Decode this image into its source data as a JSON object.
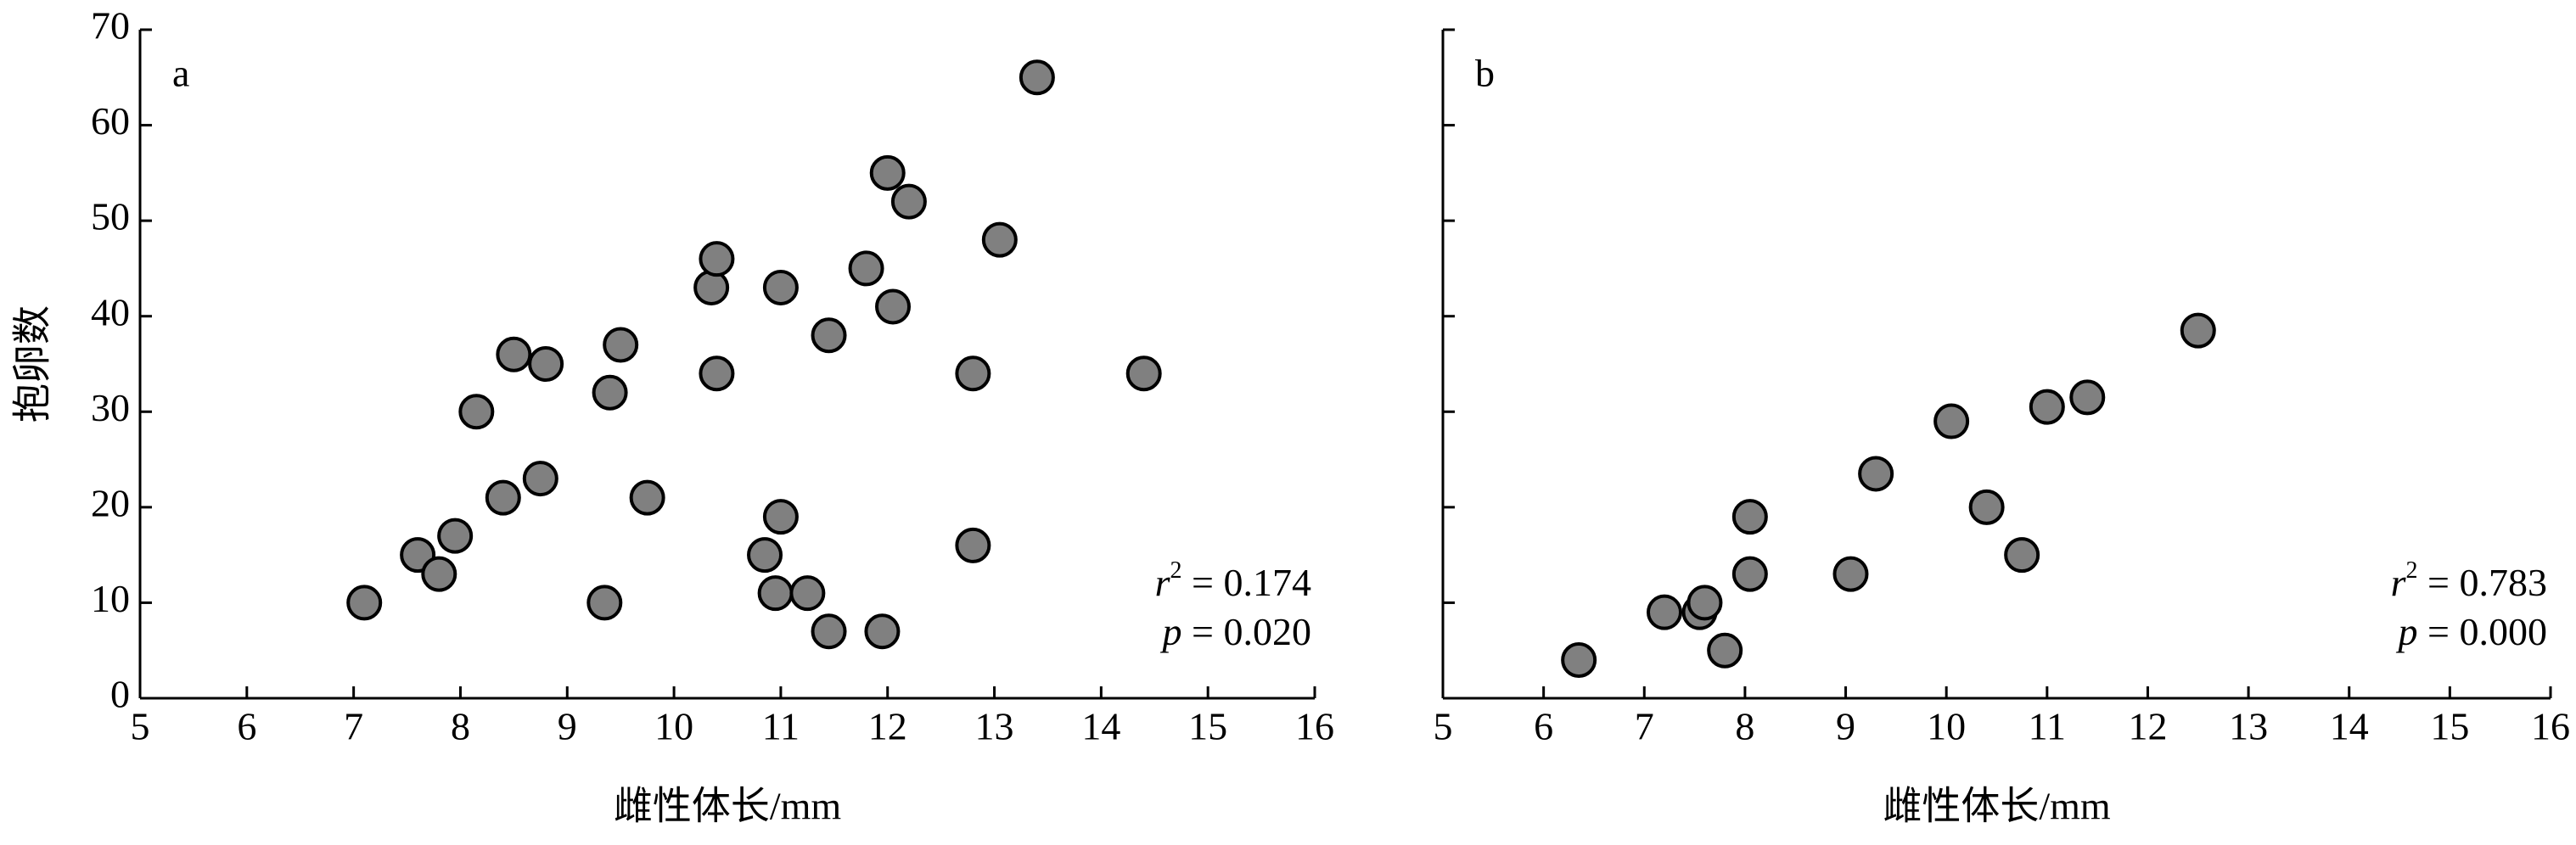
{
  "chart_data": [
    {
      "type": "scatter",
      "panel_label": "a",
      "x_label": "雌性体长/mm",
      "y_label": "抱卵数",
      "xlim": [
        5,
        16
      ],
      "xticks": [
        5,
        6,
        7,
        8,
        9,
        10,
        11,
        12,
        13,
        14,
        15,
        16
      ],
      "ylim": [
        0,
        70
      ],
      "yticks": [
        0,
        10,
        20,
        30,
        40,
        50,
        60,
        70
      ],
      "ytick_labels": true,
      "color": "#808080",
      "stats": [
        {
          "symbol": "r",
          "sup": "2",
          "text": " = 0.174"
        },
        {
          "symbol": "p",
          "text": " = 0.020"
        }
      ],
      "x": [
        7.1,
        7.6,
        7.8,
        7.95,
        8.15,
        8.4,
        8.5,
        8.75,
        8.8,
        9.35,
        9.4,
        9.5,
        9.75,
        10.35,
        10.4,
        10.4,
        10.85,
        10.95,
        11.0,
        11.0,
        11.25,
        11.45,
        11.45,
        11.8,
        11.95,
        12.0,
        12.05,
        12.2,
        12.8,
        12.8,
        13.05,
        13.4,
        14.4
      ],
      "values": [
        10,
        15,
        13,
        17,
        30,
        21,
        36,
        23,
        35,
        10,
        32,
        37,
        21,
        43,
        46,
        34,
        15,
        11,
        19,
        43,
        11,
        7,
        38,
        45,
        7,
        55,
        41,
        52,
        34,
        16,
        48,
        65,
        34
      ]
    },
    {
      "type": "scatter",
      "panel_label": "b",
      "x_label": "雌性体长/mm",
      "xlim": [
        5,
        16
      ],
      "xticks": [
        5,
        6,
        7,
        8,
        9,
        10,
        11,
        12,
        13,
        14,
        15,
        16
      ],
      "ylim": [
        0,
        70
      ],
      "yticks": [
        0,
        10,
        20,
        30,
        40,
        50,
        60,
        70
      ],
      "ytick_labels": false,
      "color": "#808080",
      "stats": [
        {
          "symbol": "r",
          "sup": "2",
          "text": " = 0.783"
        },
        {
          "symbol": "p",
          "text": " = 0.000"
        }
      ],
      "x": [
        6.35,
        7.2,
        7.55,
        7.6,
        7.8,
        8.05,
        8.05,
        9.05,
        9.3,
        10.05,
        10.4,
        10.75,
        11.0,
        11.4,
        12.5
      ],
      "values": [
        4,
        9,
        9,
        10,
        5,
        19,
        13,
        13,
        23.5,
        29,
        20,
        15,
        30.5,
        31.5,
        38.5
      ]
    }
  ]
}
